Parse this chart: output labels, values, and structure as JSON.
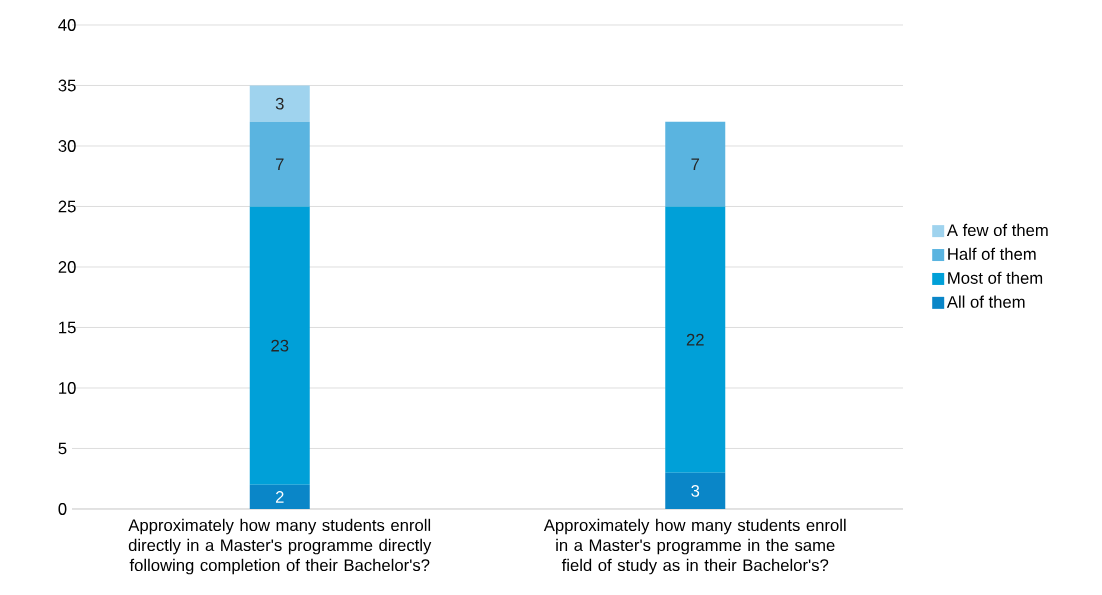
{
  "chart_data": {
    "type": "bar",
    "stacked": true,
    "categories": [
      "Approximately how many students enroll directly in a Master's programme directly following completion of their Bachelor's?",
      "Approximately how many students enroll in a Master's programme in the same field of study as in their Bachelor's?"
    ],
    "series": [
      {
        "name": "All of them",
        "color": "#0a86c8",
        "values": [
          2,
          3
        ]
      },
      {
        "name": "Most of them",
        "color": "#00a0d8",
        "values": [
          23,
          22
        ]
      },
      {
        "name": "Half of them",
        "color": "#5ab4e0",
        "values": [
          7,
          7
        ]
      },
      {
        "name": "A few of them",
        "color": "#9fd3ee",
        "values": [
          3,
          null
        ]
      }
    ],
    "ylim": [
      0,
      40
    ],
    "yticks": [
      0,
      5,
      10,
      15,
      20,
      25,
      30,
      35,
      40
    ],
    "grid": "y",
    "legend": "right",
    "data_labels": true
  }
}
